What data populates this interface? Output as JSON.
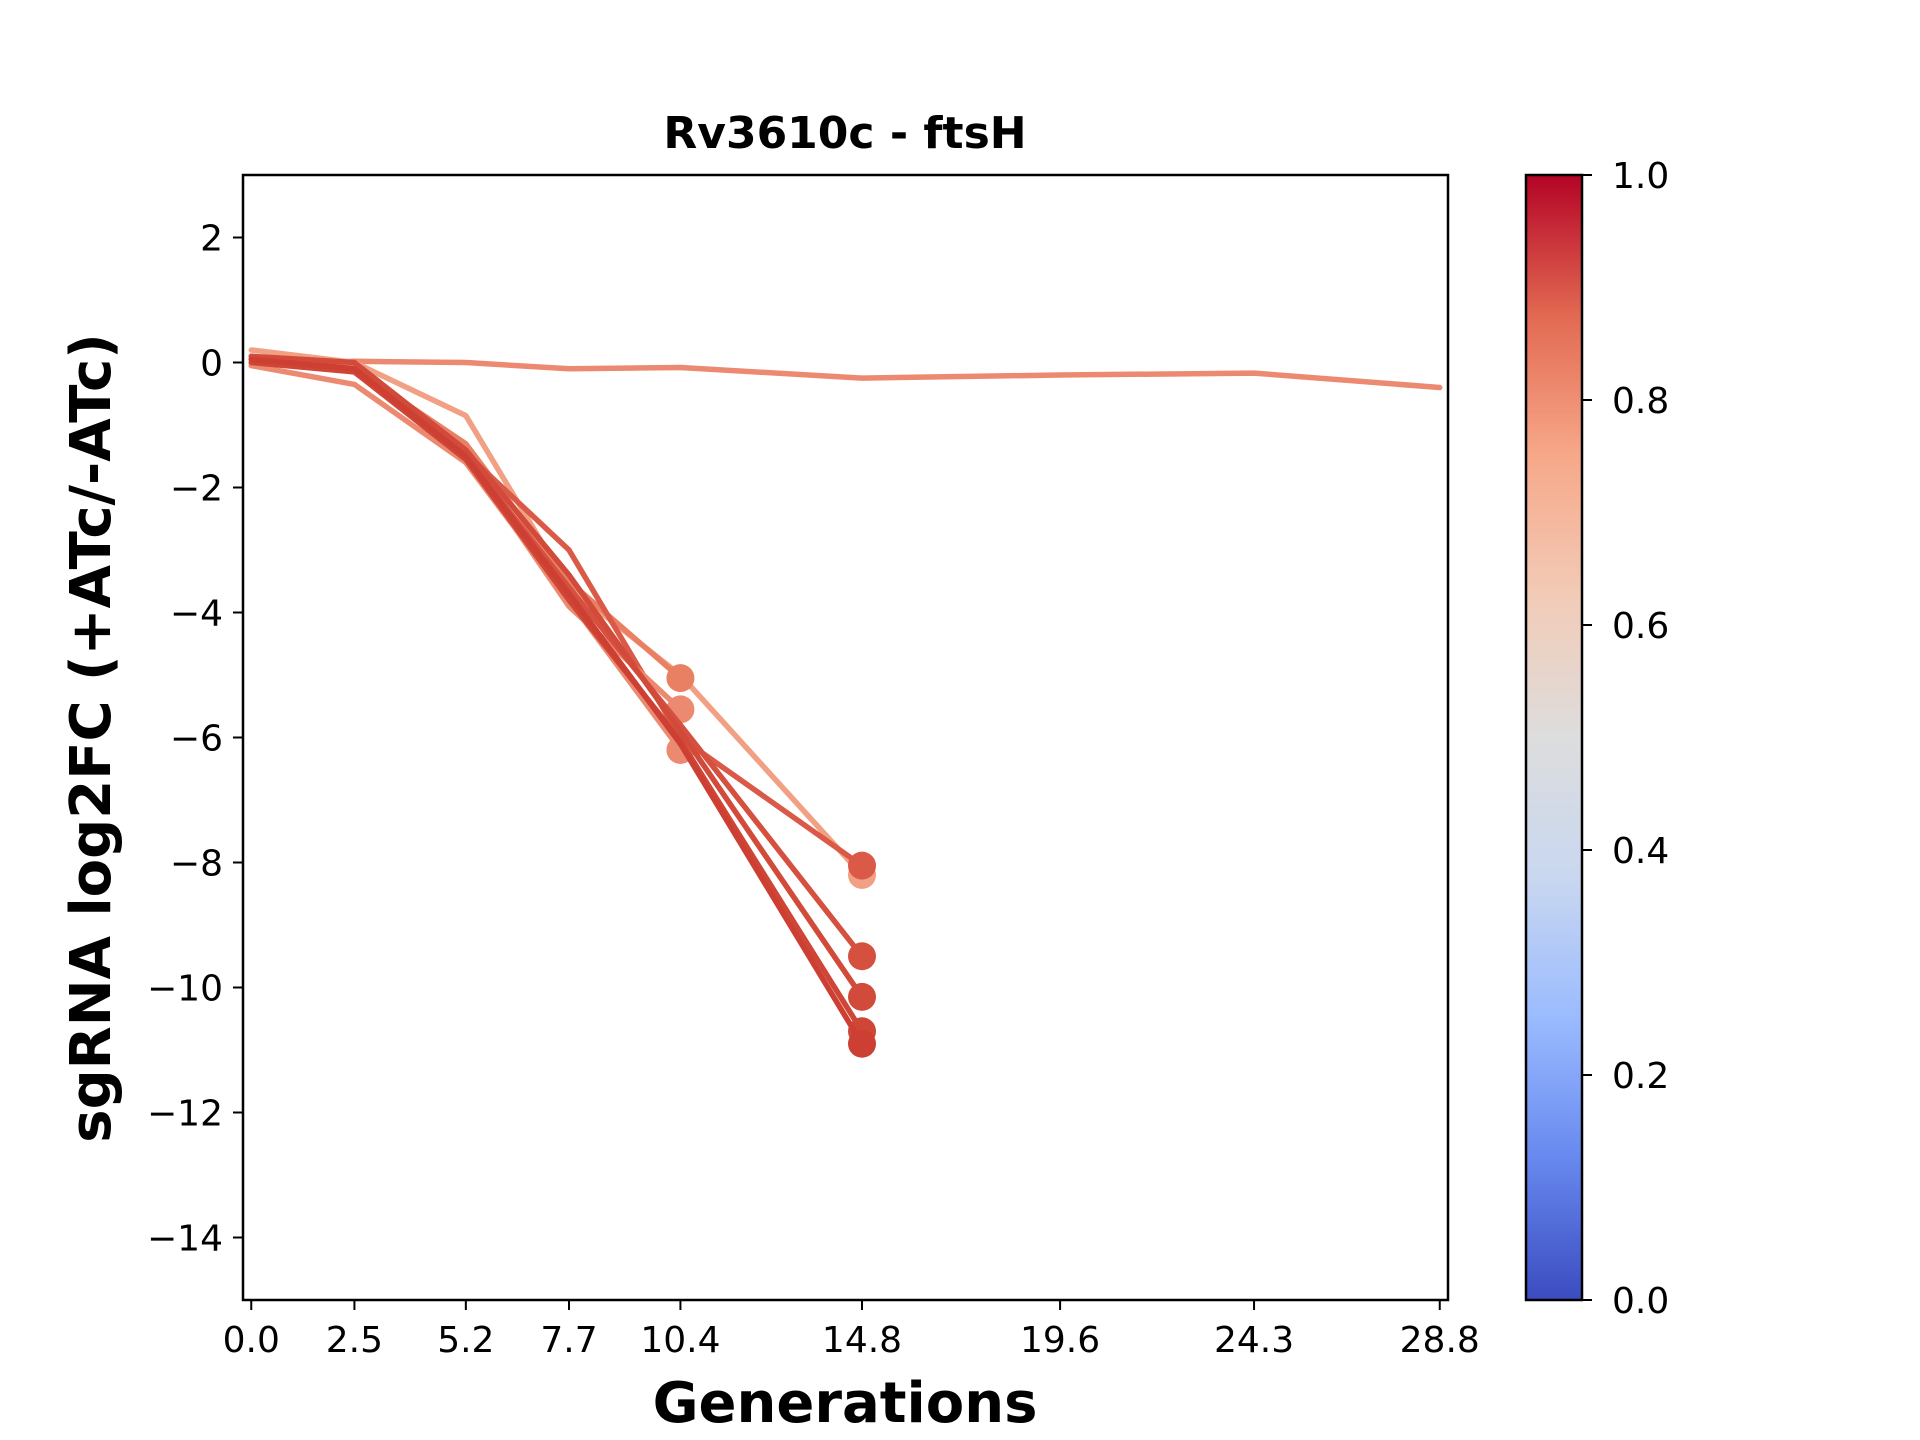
{
  "chart_data": {
    "type": "line",
    "title": "Rv3610c - ftsH",
    "xlabel": "Generations",
    "ylabel": "sgRNA log2FC (+ATc/-ATc)",
    "x_ticks": [
      "0.0",
      "2.5",
      "5.2",
      "7.7",
      "10.4",
      "14.8",
      "19.6",
      "24.3",
      "28.8"
    ],
    "y_ticks": [
      "2",
      "0",
      "−2",
      "−4",
      "−6",
      "−8",
      "−10",
      "−12",
      "−14"
    ],
    "xlim": [
      -0.2,
      29.0
    ],
    "ylim": [
      -15,
      3
    ],
    "grid": false,
    "colorbar": {
      "range": [
        0.0,
        1.0
      ],
      "ticks": [
        "0.0",
        "0.2",
        "0.4",
        "0.6",
        "0.8",
        "1.0"
      ],
      "colormap": "coolwarm",
      "stops": [
        "#3b4cc0",
        "#6788ee",
        "#9abbff",
        "#c9d7f0",
        "#dddddd",
        "#f2cbb7",
        "#f7a889",
        "#e26952",
        "#b40426"
      ]
    },
    "series": [
      {
        "x": [
          0.0,
          2.5,
          5.2,
          7.7,
          10.4,
          14.8,
          19.6,
          24.3,
          28.8
        ],
        "y": [
          -0.05,
          0.02,
          0.0,
          -0.1,
          -0.08,
          -0.25,
          -0.2,
          -0.17,
          -0.4
        ],
        "color": "#ec8a71",
        "marker_last": false
      },
      {
        "x": [
          0.0,
          2.5,
          5.2,
          7.7,
          10.4,
          14.8
        ],
        "y": [
          0.2,
          0.0,
          -0.85,
          -3.6,
          -5.0,
          -8.2
        ],
        "color": "#f1a083",
        "marker_last": true
      },
      {
        "x": [
          0.0,
          2.5,
          5.2,
          7.7,
          10.4
        ],
        "y": [
          0.0,
          -0.1,
          -1.3,
          -3.5,
          -5.05
        ],
        "color": "#e98064",
        "marker_last": true
      },
      {
        "x": [
          0.0,
          2.5,
          5.2,
          7.7,
          10.4,
          14.8
        ],
        "y": [
          0.1,
          -0.15,
          -1.45,
          -3.0,
          -6.0,
          -8.05
        ],
        "color": "#da5a47",
        "marker_last": true
      },
      {
        "x": [
          0.0,
          2.5,
          5.2,
          7.7,
          10.4
        ],
        "y": [
          0.05,
          -0.05,
          -1.5,
          -3.9,
          -5.55
        ],
        "color": "#ec8a71",
        "marker_last": true
      },
      {
        "x": [
          0.0,
          2.5,
          5.2,
          7.7,
          10.4
        ],
        "y": [
          -0.05,
          -0.35,
          -1.6,
          -3.8,
          -6.2
        ],
        "color": "#ec8a71",
        "marker_last": true
      },
      {
        "x": [
          0.0,
          2.5,
          5.2,
          7.7,
          10.4,
          14.8
        ],
        "y": [
          0.05,
          -0.1,
          -1.5,
          -3.6,
          -5.8,
          -9.5
        ],
        "color": "#d5503f",
        "marker_last": true
      },
      {
        "x": [
          0.0,
          2.5,
          5.2,
          7.7,
          10.4,
          14.8
        ],
        "y": [
          0.1,
          0.0,
          -1.4,
          -3.4,
          -5.9,
          -10.15
        ],
        "color": "#d24b3a",
        "marker_last": true
      },
      {
        "x": [
          0.0,
          2.5,
          5.2,
          7.7,
          10.4,
          14.8
        ],
        "y": [
          0.0,
          -0.15,
          -1.55,
          -3.8,
          -6.05,
          -10.7
        ],
        "color": "#cf4536",
        "marker_last": true
      },
      {
        "x": [
          0.0,
          2.5,
          5.2,
          7.7,
          10.4,
          14.8
        ],
        "y": [
          0.05,
          -0.1,
          -1.5,
          -3.7,
          -6.1,
          -10.9
        ],
        "color": "#cc3f32",
        "marker_last": true
      }
    ]
  }
}
